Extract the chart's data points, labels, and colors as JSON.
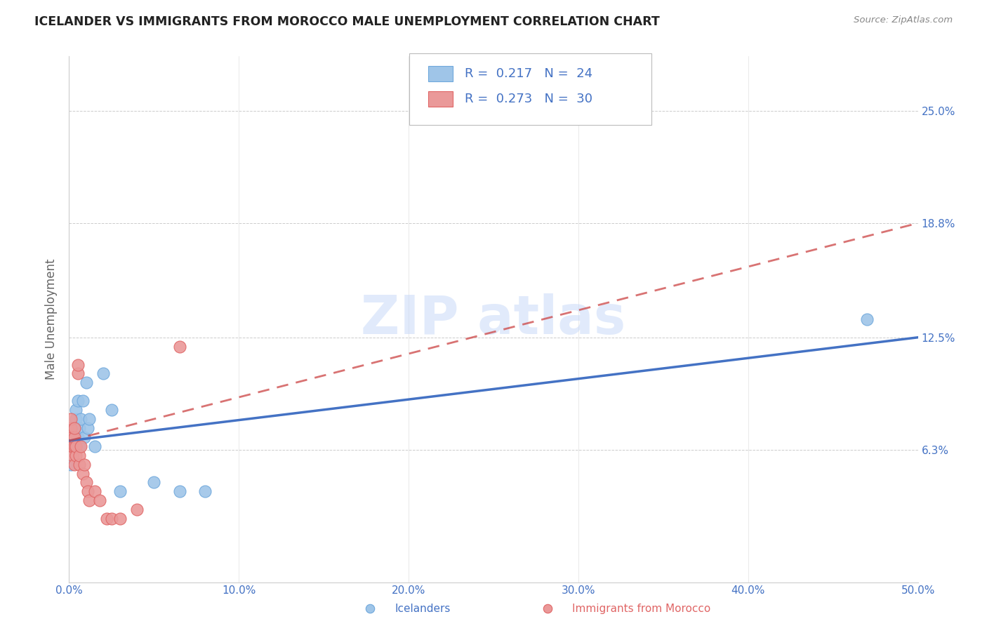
{
  "title": "ICELANDER VS IMMIGRANTS FROM MOROCCO MALE UNEMPLOYMENT CORRELATION CHART",
  "source": "Source: ZipAtlas.com",
  "ylabel": "Male Unemployment",
  "xlim": [
    0.0,
    0.5
  ],
  "ylim": [
    -0.01,
    0.28
  ],
  "legend_r1": "0.217",
  "legend_n1": "24",
  "legend_r2": "0.273",
  "legend_n2": "30",
  "color_blue": "#9fc5e8",
  "color_blue_edge": "#6fa8dc",
  "color_pink": "#ea9999",
  "color_pink_edge": "#e06666",
  "color_blue_line": "#4472c4",
  "color_pink_line": "#cc4444",
  "color_axis_label": "#4472c4",
  "watermark_color": "#c9daf8",
  "ytick_vals": [
    0.063,
    0.125,
    0.188,
    0.25
  ],
  "ytick_labs": [
    "6.3%",
    "12.5%",
    "18.8%",
    "25.0%"
  ],
  "xtick_vals": [
    0.0,
    0.1,
    0.2,
    0.3,
    0.4,
    0.5
  ],
  "xtick_labs": [
    "0.0%",
    "10.0%",
    "20.0%",
    "30.0%",
    "40.0%",
    "50.0%"
  ],
  "blue_line_y0": 0.068,
  "blue_line_y1": 0.125,
  "pink_line_y0": 0.068,
  "pink_line_y1": 0.188,
  "icelanders_x": [
    0.001,
    0.002,
    0.003,
    0.003,
    0.004,
    0.004,
    0.005,
    0.005,
    0.006,
    0.006,
    0.007,
    0.008,
    0.009,
    0.01,
    0.011,
    0.012,
    0.015,
    0.02,
    0.025,
    0.03,
    0.05,
    0.065,
    0.08,
    0.47
  ],
  "icelanders_y": [
    0.055,
    0.065,
    0.07,
    0.075,
    0.08,
    0.085,
    0.07,
    0.09,
    0.065,
    0.075,
    0.08,
    0.09,
    0.07,
    0.1,
    0.075,
    0.08,
    0.065,
    0.105,
    0.085,
    0.04,
    0.045,
    0.04,
    0.04,
    0.135
  ],
  "morocco_x": [
    0.001,
    0.001,
    0.001,
    0.001,
    0.002,
    0.002,
    0.002,
    0.003,
    0.003,
    0.003,
    0.003,
    0.004,
    0.004,
    0.005,
    0.005,
    0.006,
    0.006,
    0.007,
    0.008,
    0.009,
    0.01,
    0.011,
    0.012,
    0.015,
    0.018,
    0.022,
    0.025,
    0.03,
    0.04,
    0.065
  ],
  "morocco_y": [
    0.065,
    0.07,
    0.075,
    0.08,
    0.06,
    0.065,
    0.07,
    0.055,
    0.065,
    0.07,
    0.075,
    0.06,
    0.065,
    0.105,
    0.11,
    0.055,
    0.06,
    0.065,
    0.05,
    0.055,
    0.045,
    0.04,
    0.035,
    0.04,
    0.035,
    0.025,
    0.025,
    0.025,
    0.03,
    0.12
  ]
}
